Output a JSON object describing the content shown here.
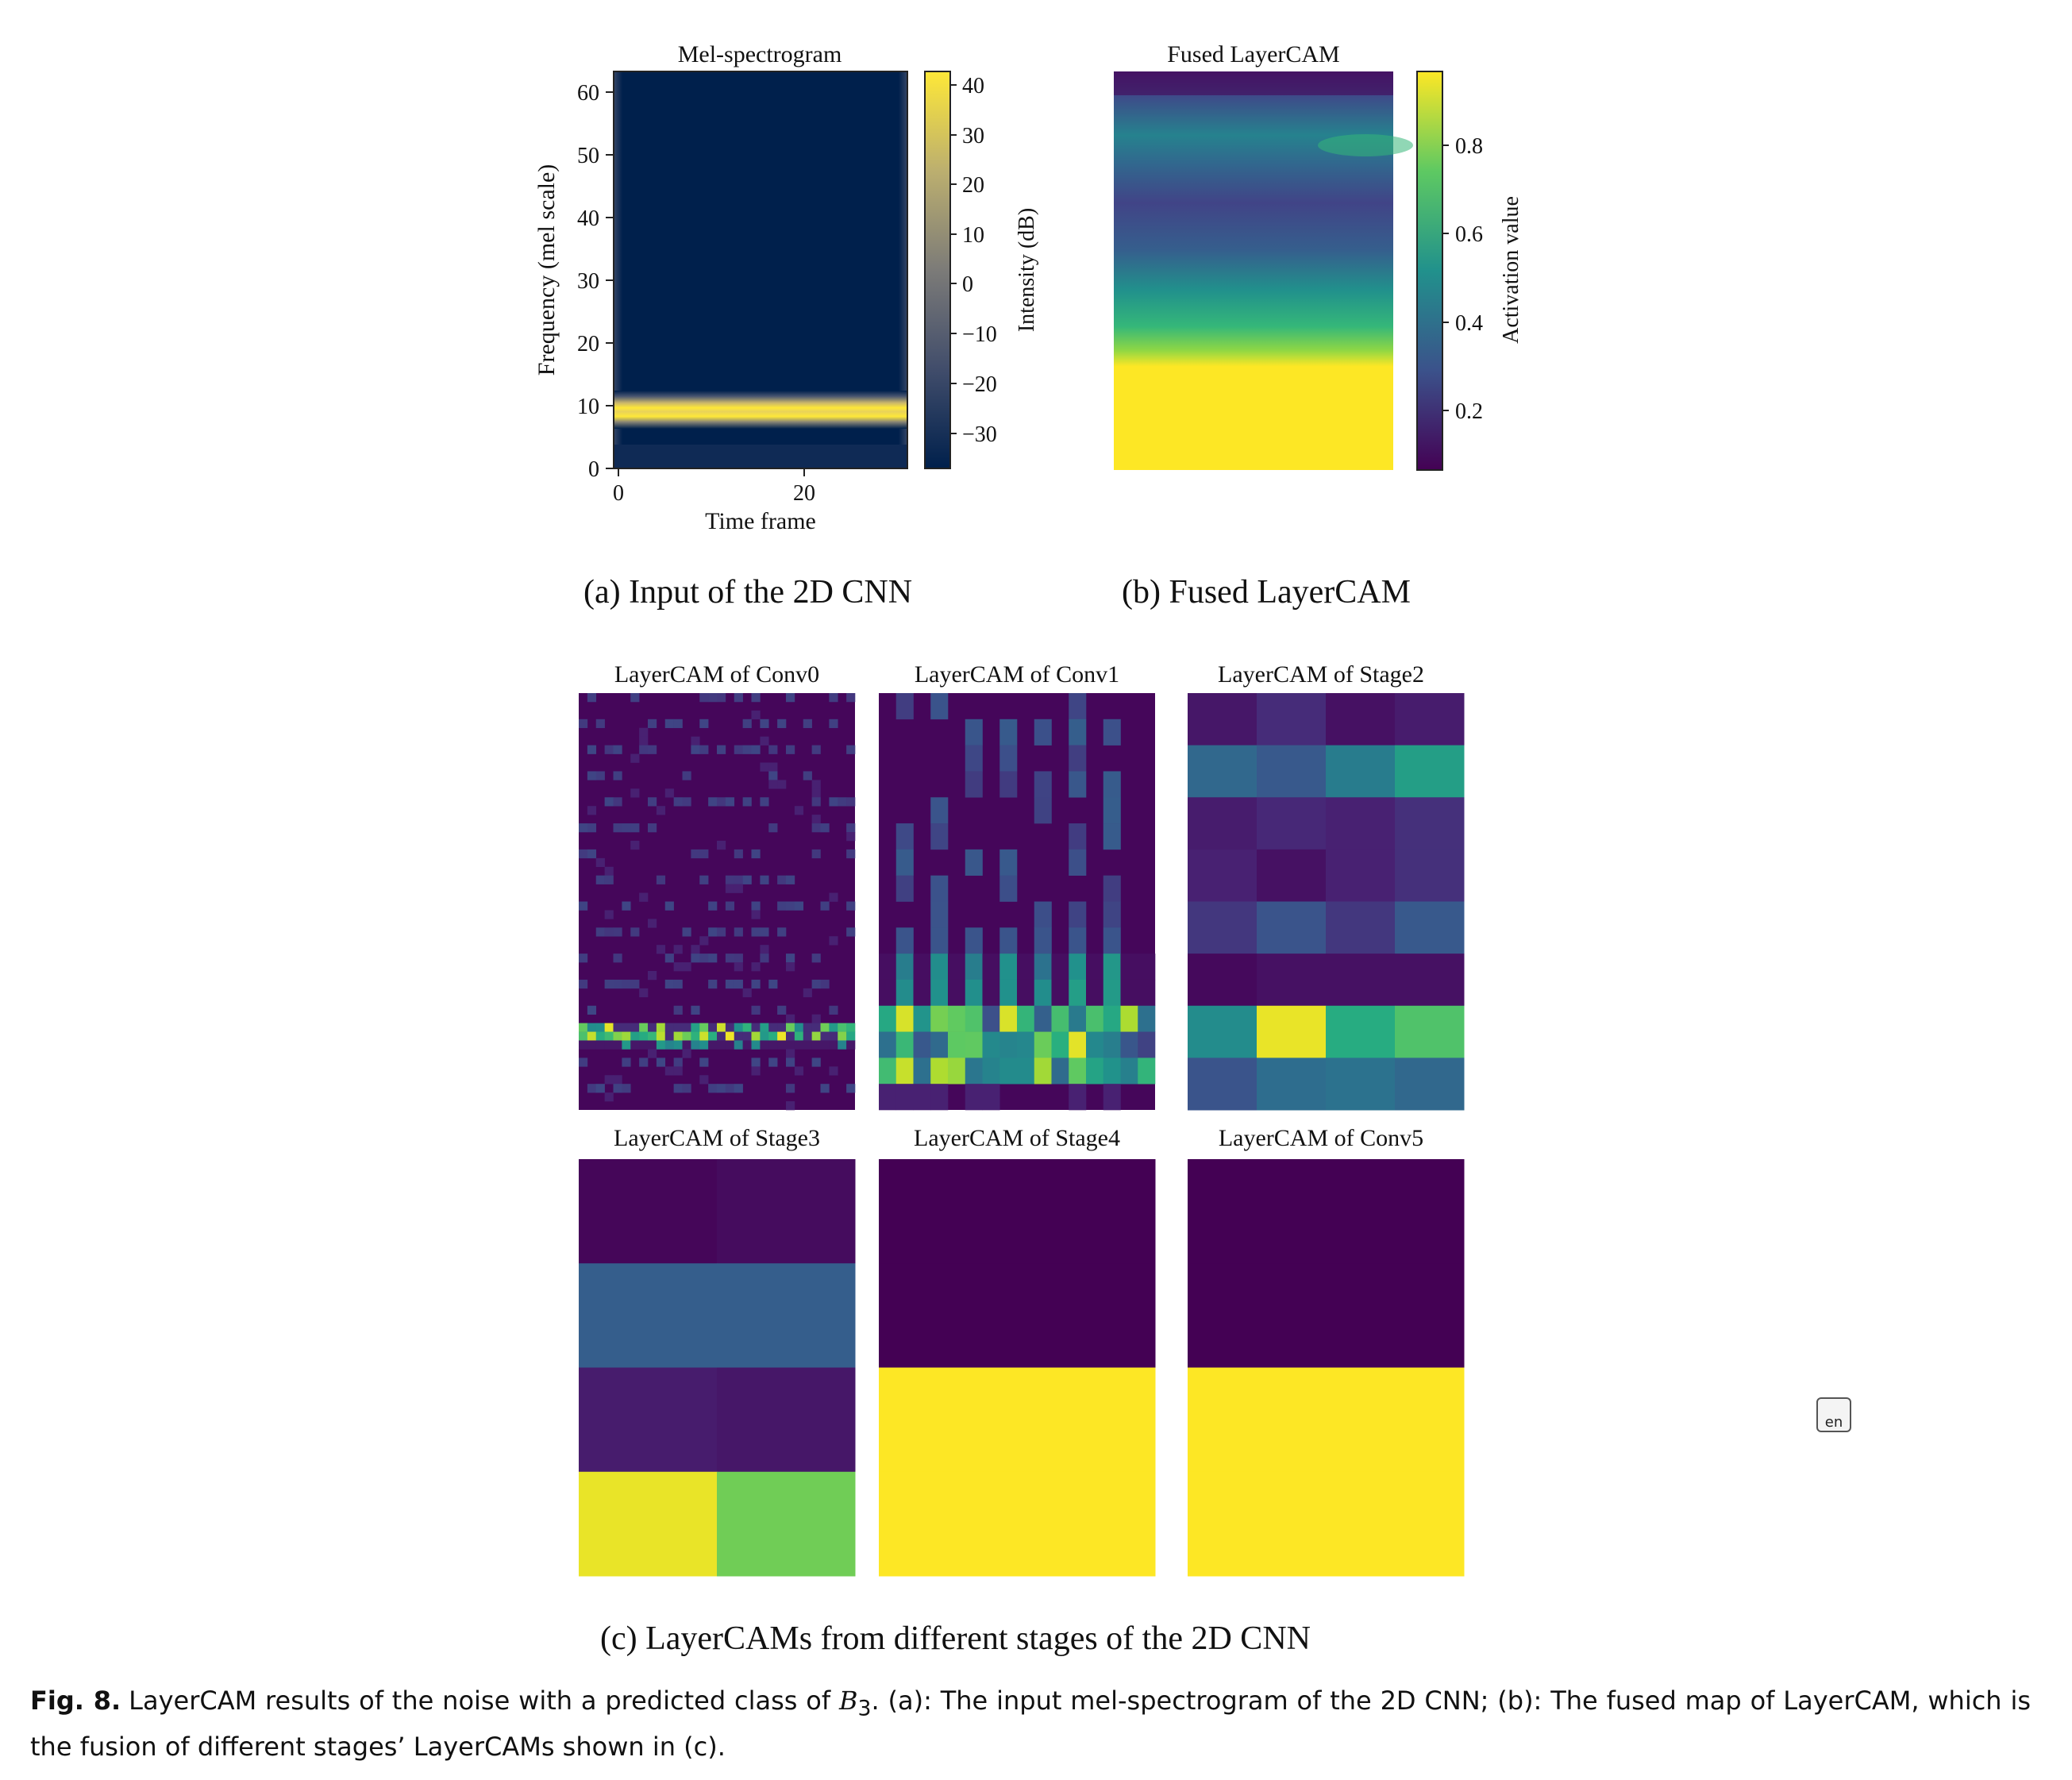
{
  "subfigures": {
    "a": {
      "title": "Mel-spectrogram",
      "xlabel": "Time frame",
      "ylabel": "Frequency (mel scale)",
      "colorbar_label": "Intensity (dB)",
      "xticks": [
        "0",
        "20"
      ],
      "yticks": [
        "0",
        "10",
        "20",
        "30",
        "40",
        "50",
        "60"
      ],
      "cbar_ticks": [
        "40",
        "30",
        "20",
        "10",
        "0",
        "−10",
        "−20",
        "−30"
      ],
      "caption": "(a) Input of the 2D CNN"
    },
    "b": {
      "title": "Fused LayerCAM",
      "colorbar_label": "Activation value",
      "cbar_ticks": [
        "0.8",
        "0.6",
        "0.4",
        "0.2"
      ],
      "caption": "(b) Fused LayerCAM"
    },
    "c": {
      "panels": [
        "LayerCAM of Conv0",
        "LayerCAM of Conv1",
        "LayerCAM of Stage2",
        "LayerCAM of Stage3",
        "LayerCAM of Stage4",
        "LayerCAM of Conv5"
      ],
      "caption": "(c) LayerCAMs from different stages of the 2D CNN"
    }
  },
  "caption": {
    "label": "Fig. 8.",
    "text_before": "LayerCAM results of the noise with a predicted class of ",
    "class_symbol": "B",
    "class_subscript": "3",
    "text_after": ". (a): The input mel-spectrogram of the 2D CNN; (b): The fused map of LayerCAM, which is the fusion of different stages’ LayerCAMs shown in (c)."
  },
  "chart_data": [
    {
      "type": "heatmap",
      "title": "Mel-spectrogram",
      "xlabel": "Time frame",
      "ylabel": "Frequency (mel scale)",
      "xlim": [
        0,
        31
      ],
      "ylim": [
        0,
        63
      ],
      "colorbar": {
        "label": "Intensity (dB)",
        "range": [
          -37,
          43
        ],
        "colormap": "cividis"
      },
      "description_values": {
        "bright_band_mel_bins": [
          5,
          10
        ],
        "bright_band_db": 43,
        "background_db": -37
      }
    },
    {
      "type": "heatmap",
      "title": "Fused LayerCAM",
      "colorbar": {
        "label": "Activation value",
        "range": [
          0.05,
          0.97
        ],
        "colormap": "viridis"
      },
      "row_profile_top_to_bottom": [
        0.12,
        0.2,
        0.42,
        0.52,
        0.42,
        0.33,
        0.3,
        0.36,
        0.5,
        0.62,
        0.72,
        0.85,
        0.96,
        0.97
      ]
    },
    {
      "type": "heatmap",
      "title": "LayerCAM of Stage2",
      "colormap": "viridis",
      "values": [
        [
          0.08,
          0.15,
          0.06,
          0.1
        ],
        [
          0.34,
          0.28,
          0.42,
          0.56
        ],
        [
          0.1,
          0.14,
          0.12,
          0.16
        ],
        [
          0.12,
          0.06,
          0.12,
          0.16
        ],
        [
          0.18,
          0.26,
          0.18,
          0.28
        ],
        [
          0.03,
          0.06,
          0.06,
          0.06
        ],
        [
          0.48,
          0.97,
          0.62,
          0.72
        ],
        [
          0.26,
          0.36,
          0.38,
          0.34
        ]
      ]
    },
    {
      "type": "heatmap",
      "title": "LayerCAM of Stage3",
      "colormap": "viridis",
      "values": [
        [
          0.02,
          0.04
        ],
        [
          0.3,
          0.3
        ],
        [
          0.1,
          0.08
        ],
        [
          0.97,
          0.78
        ]
      ]
    },
    {
      "type": "heatmap",
      "title": "LayerCAM of Stage4",
      "colormap": "viridis",
      "values": [
        [
          0.0
        ],
        [
          0.0
        ],
        [
          1.0
        ],
        [
          1.0
        ]
      ]
    },
    {
      "type": "heatmap",
      "title": "LayerCAM of Conv5",
      "colormap": "viridis",
      "values": [
        [
          0.0
        ],
        [
          0.0
        ],
        [
          1.0
        ],
        [
          1.0
        ]
      ]
    }
  ]
}
